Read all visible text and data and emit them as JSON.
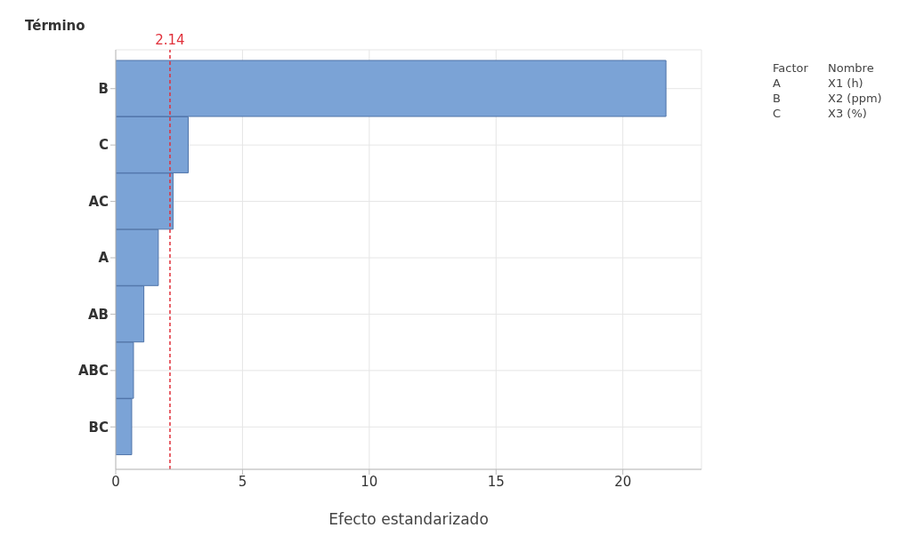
{
  "chart_data": {
    "type": "bar",
    "orientation": "horizontal",
    "categories": [
      "B",
      "C",
      "AC",
      "A",
      "AB",
      "ABC",
      "BC"
    ],
    "values": [
      21.7,
      2.86,
      2.26,
      1.68,
      1.11,
      0.7,
      0.63
    ],
    "color": "#7ba3d6",
    "xlim": [
      0,
      23.1
    ],
    "xticks": [
      0,
      5,
      10,
      15,
      20
    ],
    "xlabel": "Efecto estandarizado",
    "ylabel": "Término",
    "grid": true,
    "ref_lines": [
      {
        "axis": "x",
        "value": 2.14,
        "label": "2.14",
        "color": "#e0303a",
        "line_style": "dashed"
      }
    ],
    "annotations": [
      "Factor",
      "Nombre",
      "A",
      "X1 (h)",
      "B",
      "X2 (ppm)",
      "C",
      "X3 (%)"
    ]
  }
}
